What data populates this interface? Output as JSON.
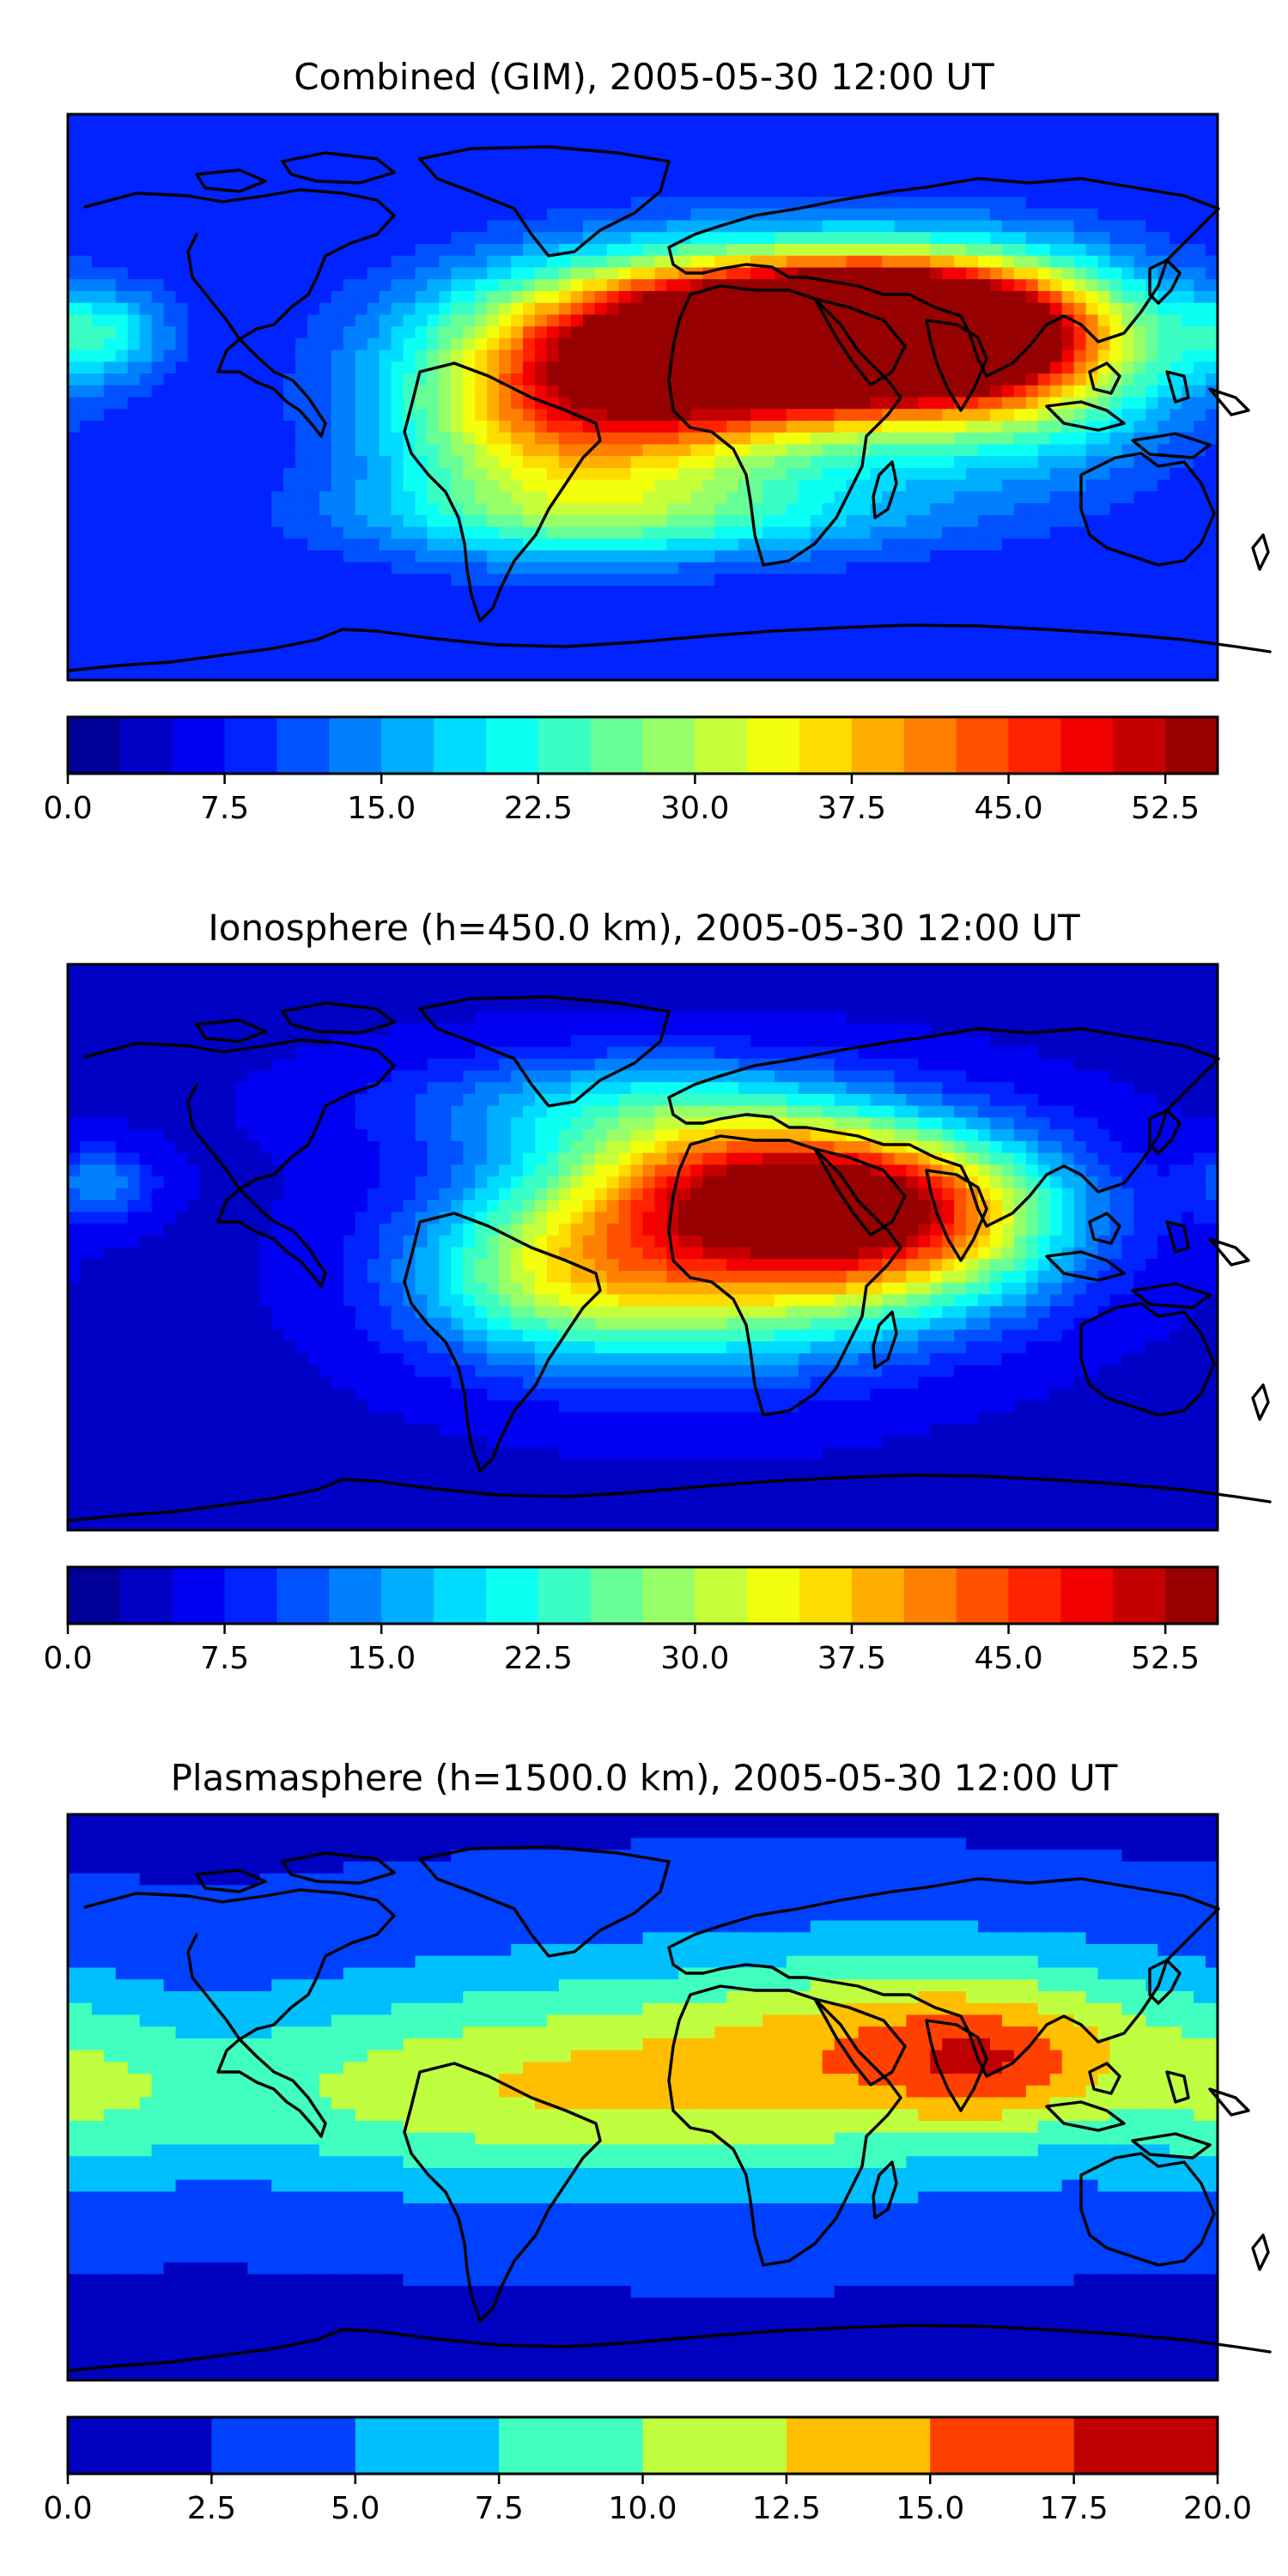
{
  "chart_data": [
    {
      "type": "heatmap",
      "title": "Combined (GIM), 2005-05-30 12:00 UT",
      "colorbar": {
        "min": 0.0,
        "max": 55.0,
        "step": 2.5,
        "ticks": [
          0.0,
          7.5,
          15.0,
          22.5,
          30.0,
          37.5,
          45.0,
          52.5
        ],
        "tick_labels": [
          "0.0",
          "7.5",
          "15.0",
          "22.5",
          "30.0",
          "37.5",
          "45.0",
          "52.5"
        ],
        "colormap": "jet"
      },
      "background_level": 7.5,
      "features": [
        {
          "lon": 45,
          "lat": 22,
          "value": 50,
          "spread_lon": 55,
          "spread_lat": 16
        },
        {
          "lon": 80,
          "lat": 22,
          "value": 48,
          "spread_lon": 35,
          "spread_lat": 14
        },
        {
          "lon": 15,
          "lat": 5,
          "value": 40,
          "spread_lon": 45,
          "spread_lat": 22
        },
        {
          "lon": -35,
          "lat": -10,
          "value": 26,
          "spread_lon": 35,
          "spread_lat": 22
        },
        {
          "lon": 115,
          "lat": 10,
          "value": 30,
          "spread_lon": 35,
          "spread_lat": 22
        },
        {
          "lon": -170,
          "lat": 20,
          "value": 20,
          "spread_lon": 15,
          "spread_lat": 10
        },
        {
          "lon": 0,
          "lat": -38,
          "value": 20,
          "spread_lon": 60,
          "spread_lat": 10
        }
      ]
    },
    {
      "type": "heatmap",
      "title": "Ionosphere  (h=450.0 km), 2005-05-30 12:00 UT",
      "colorbar": {
        "min": 0.0,
        "max": 55.0,
        "step": 2.5,
        "ticks": [
          0.0,
          7.5,
          15.0,
          22.5,
          30.0,
          37.5,
          45.0,
          52.5
        ],
        "tick_labels": [
          "0.0",
          "7.5",
          "15.0",
          "22.5",
          "30.0",
          "37.5",
          "45.0",
          "52.5"
        ],
        "colormap": "jet"
      },
      "background_level": 4.5,
      "features": [
        {
          "lon": 45,
          "lat": 20,
          "value": 38,
          "spread_lon": 45,
          "spread_lat": 15
        },
        {
          "lon": 20,
          "lat": -5,
          "value": 34,
          "spread_lon": 45,
          "spread_lat": 22
        },
        {
          "lon": 85,
          "lat": 5,
          "value": 30,
          "spread_lon": 35,
          "spread_lat": 18
        },
        {
          "lon": -35,
          "lat": -10,
          "value": 18,
          "spread_lon": 30,
          "spread_lat": 18
        },
        {
          "lon": 0,
          "lat": 45,
          "value": 18,
          "spread_lon": 50,
          "spread_lat": 12
        },
        {
          "lon": -170,
          "lat": 20,
          "value": 14,
          "spread_lon": 12,
          "spread_lat": 8
        }
      ]
    },
    {
      "type": "heatmap",
      "title": "Plasmasphere (h=1500.0 km), 2005-05-30 12:00 UT",
      "colorbar": {
        "min": 0.0,
        "max": 20.0,
        "step": 2.5,
        "ticks": [
          0.0,
          2.5,
          5.0,
          7.5,
          10.0,
          12.5,
          15.0,
          17.5,
          20.0
        ],
        "tick_labels": [
          "0.0",
          "2.5",
          "5.0",
          "7.5",
          "10.0",
          "12.5",
          "15.0",
          "17.5",
          "20.0"
        ],
        "colormap": "jet"
      },
      "background_level": 2.2,
      "features": [
        {
          "lon": 40,
          "lat": 10,
          "value": 10,
          "spread_lon": 110,
          "spread_lat": 28
        },
        {
          "lon": 100,
          "lat": 20,
          "value": 8,
          "spread_lon": 45,
          "spread_lat": 18
        },
        {
          "lon": 110,
          "lat": 8,
          "value": 6,
          "spread_lon": 20,
          "spread_lat": 12
        },
        {
          "lon": -60,
          "lat": 0,
          "value": 7,
          "spread_lon": 90,
          "spread_lat": 20
        },
        {
          "lon": -170,
          "lat": 0,
          "value": 5,
          "spread_lon": 30,
          "spread_lat": 20
        }
      ]
    }
  ]
}
